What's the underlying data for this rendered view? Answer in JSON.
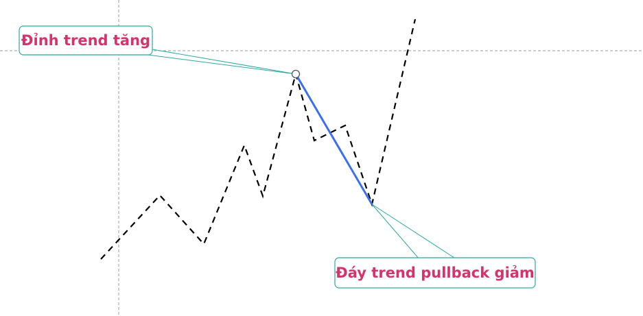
{
  "annotations": {
    "peak_label": "Đỉnh trend tăng",
    "bottom_label": "Đáy trend pullback giảm"
  },
  "colors": {
    "background": "#ffffff",
    "price_line": "#000000",
    "pullback_line": "#3a6ff0",
    "label_text": "#d6336c",
    "label_border": "#2aa9a0",
    "callout_line": "#2aa9a0",
    "crosshair": "#9a9a9a",
    "marker_fill": "#ffffff",
    "marker_stroke": "#555555"
  }
}
